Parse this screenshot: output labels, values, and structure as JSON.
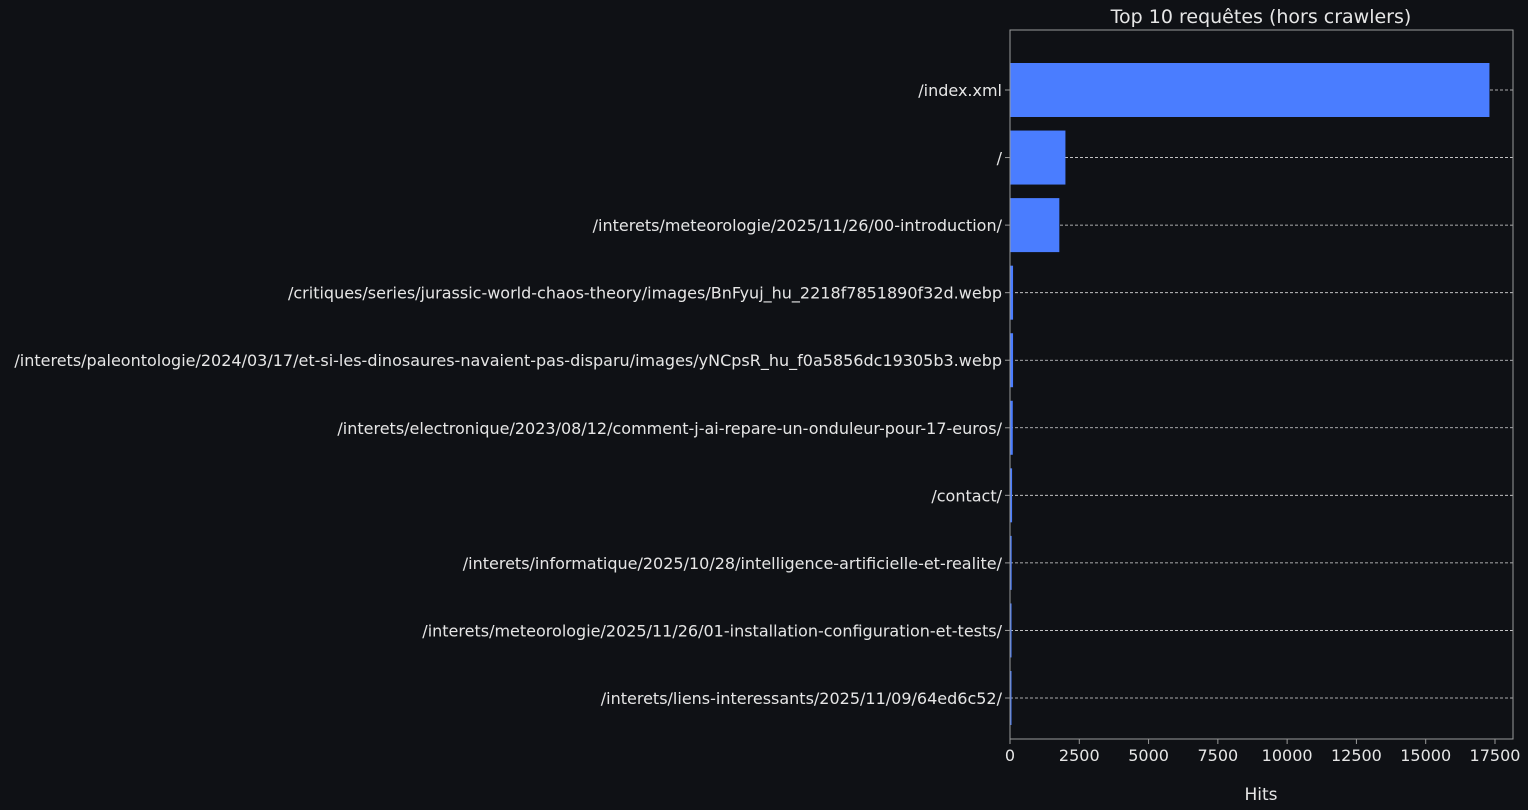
{
  "chart_data": {
    "type": "bar",
    "orientation": "horizontal",
    "title": "Top 10 requêtes (hors crawlers)",
    "xlabel": "Hits",
    "ylabel": "",
    "xlim": [
      0,
      18150
    ],
    "xticks": [
      0,
      2500,
      5000,
      7500,
      10000,
      12500,
      15000,
      17500
    ],
    "grid": "y-dashed",
    "categories": [
      "/index.xml",
      "/",
      "/interets/meteorologie/2025/11/26/00-introduction/",
      "/critiques/series/jurassic-world-chaos-theory/images/BnFyuj_hu_2218f7851890f32d.webp",
      "/interets/paleontologie/2024/03/17/et-si-les-dinosaures-navaient-pas-disparu/images/yNCpsR_hu_f0a5856dc19305b3.webp",
      "/interets/electronique/2023/08/12/comment-j-ai-repare-un-onduleur-pour-17-euros/",
      "/contact/",
      "/interets/informatique/2025/10/28/intelligence-artificielle-et-realite/",
      "/interets/meteorologie/2025/11/26/01-installation-configuration-et-tests/",
      "/interets/liens-interessants/2025/11/09/64ed6c52/"
    ],
    "values": [
      17300,
      2000,
      1780,
      110,
      110,
      100,
      75,
      60,
      55,
      50
    ],
    "colors": {
      "background": "#0f1115",
      "bar": "#4a7dff",
      "text": "#e6e6e6",
      "axis": "#9a9a9a",
      "grid": "#ffffff"
    }
  }
}
